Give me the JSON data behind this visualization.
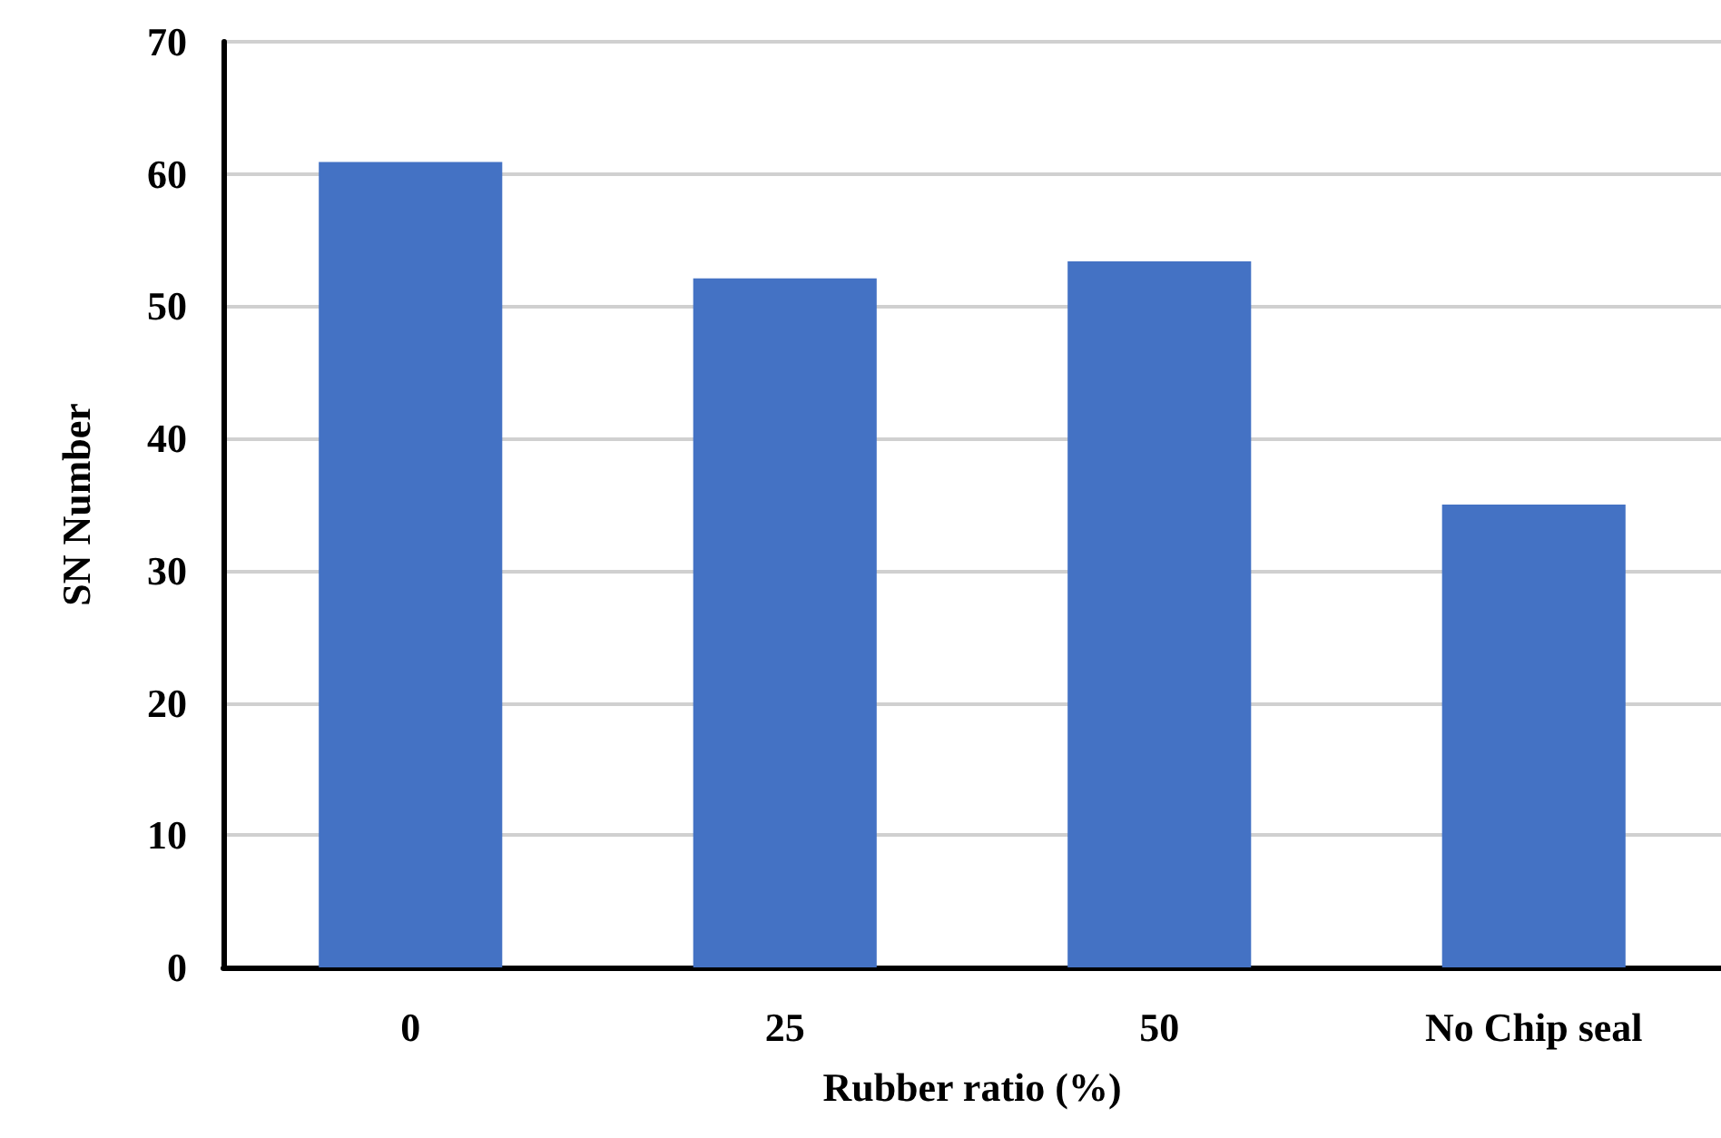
{
  "chart_data": {
    "type": "bar",
    "xlabel": "Rubber ratio (%)",
    "ylabel": "SN Number",
    "categories": [
      "0",
      "25",
      "50",
      "No Chip seal"
    ],
    "values": [
      60.9,
      52.1,
      53.4,
      35.0
    ],
    "color": "#4472c4",
    "ylim": [
      0,
      70
    ],
    "yticks": [
      0,
      10,
      20,
      30,
      40,
      50,
      60,
      70
    ],
    "grid": "y"
  }
}
